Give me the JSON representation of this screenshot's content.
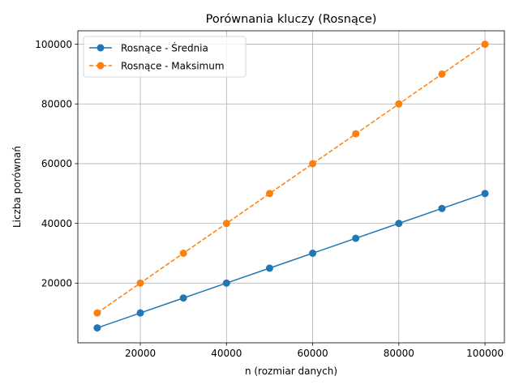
{
  "chart_data": {
    "type": "line",
    "title": "Porównania kluczy (Rosnące)",
    "xlabel": "n (rozmiar danych)",
    "ylabel": "Liczba porównań",
    "xlim": [
      5500,
      104500
    ],
    "ylim": [
      0,
      104500
    ],
    "xticks": [
      20000,
      40000,
      60000,
      80000,
      100000
    ],
    "yticks": [
      20000,
      40000,
      60000,
      80000,
      100000
    ],
    "grid": true,
    "legend_position": "top-left",
    "x": [
      10000,
      20000,
      30000,
      40000,
      50000,
      60000,
      70000,
      80000,
      90000,
      100000
    ],
    "series": [
      {
        "name": "Rosnące - Średnia",
        "color": "#1f77b4",
        "line_style": "solid",
        "marker": "circle",
        "values": [
          5000,
          10000,
          15000,
          20000,
          25000,
          30000,
          35000,
          40000,
          45000,
          50000
        ]
      },
      {
        "name": "Rosnące - Maksimum",
        "color": "#ff7f0e",
        "line_style": "dashed",
        "marker": "circle",
        "values": [
          10000,
          20000,
          30000,
          40000,
          50000,
          60000,
          70000,
          80000,
          90000,
          100000
        ]
      }
    ]
  }
}
